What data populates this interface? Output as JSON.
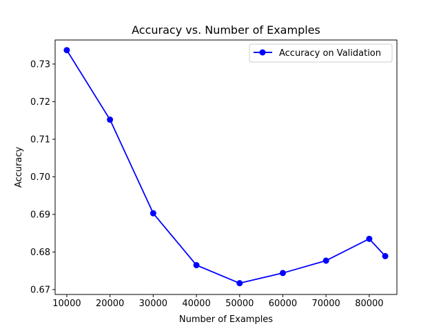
{
  "chart_data": {
    "type": "line",
    "title": "Accuracy vs. Number of Examples",
    "xlabel": "Number of Examples",
    "ylabel": "Accuracy",
    "xlim": [
      7300,
      86400
    ],
    "ylim": [
      0.6687,
      0.7364
    ],
    "xticks": [
      10000,
      20000,
      30000,
      40000,
      50000,
      60000,
      70000,
      80000
    ],
    "yticks": [
      0.67,
      0.68,
      0.69,
      0.7,
      0.71,
      0.72,
      0.73
    ],
    "ytick_labels": [
      "0.67",
      "0.68",
      "0.69",
      "0.70",
      "0.71",
      "0.72",
      "0.73"
    ],
    "grid": false,
    "legend": {
      "position": "top-right"
    },
    "series": [
      {
        "name": "Accuracy on Validation",
        "color": "#0000ff",
        "marker": "circle",
        "x": [
          10000,
          20000,
          30000,
          40000,
          50000,
          60000,
          70000,
          80000,
          83700
        ],
        "y": [
          0.7337,
          0.7152,
          0.6903,
          0.6765,
          0.6717,
          0.6744,
          0.6777,
          0.6835,
          0.6789
        ]
      }
    ]
  }
}
